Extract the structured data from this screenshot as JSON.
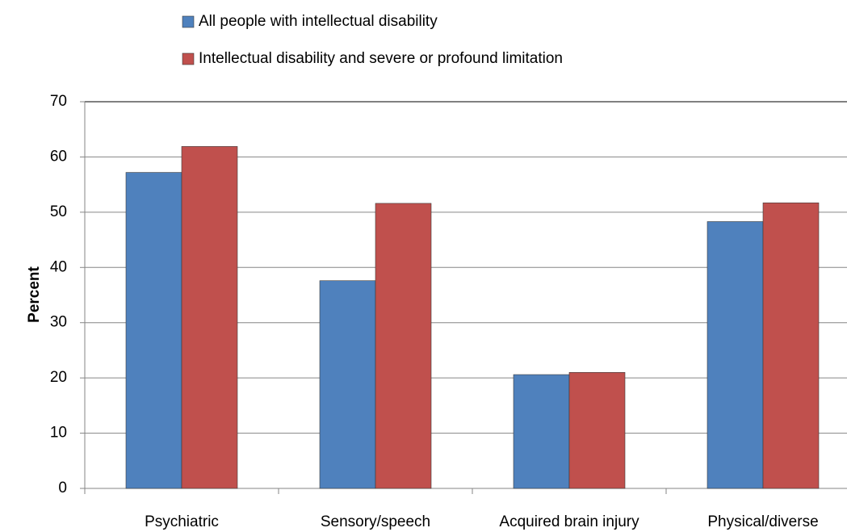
{
  "chart_data": {
    "type": "bar",
    "y_axis_label": "Percent",
    "categories": [
      "Psychiatric",
      "Sensory/speech",
      "Acquired brain injury",
      "Physical/diverse"
    ],
    "series": [
      {
        "name": "All people with intellectual disability",
        "color": "#4f81bd",
        "values": [
          57.2,
          37.6,
          20.6,
          48.3
        ]
      },
      {
        "name": "Intellectual disability and severe or profound limitation",
        "color": "#c0504d",
        "values": [
          61.9,
          51.6,
          21.0,
          51.7
        ]
      }
    ],
    "ylim": [
      0,
      70
    ],
    "yticks": [
      0,
      10,
      20,
      30,
      40,
      50,
      60,
      70
    ],
    "grid": true,
    "legend": "top"
  }
}
